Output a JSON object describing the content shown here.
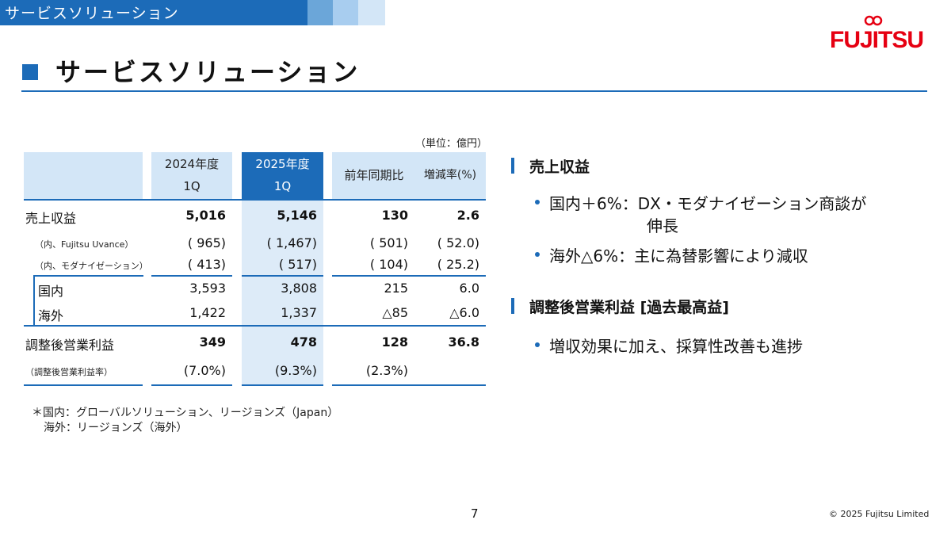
{
  "header": {
    "tab_label": "サービスソリューション"
  },
  "logo": {
    "text": "FUJITSU"
  },
  "page_title": "サービスソリューション",
  "table": {
    "unit": "（単位：億円）",
    "columns": {
      "fy2024_line1": "2024年度",
      "fy2024_line2": "1Q",
      "fy2025_line1": "2025年度",
      "fy2025_line2": "1Q",
      "yoy": "前年同期比",
      "growth": "増減率(%)"
    },
    "rows": [
      {
        "label": "売上収益",
        "v2024": "5,016",
        "v2025": "5,146",
        "yoy": "130",
        "rate": "2.6"
      },
      {
        "label": "（内、Fujitsu Uvance）",
        "v2024": "( 965)",
        "v2025": "( 1,467)",
        "yoy": "( 501)",
        "rate": "( 52.0)"
      },
      {
        "label": "（内、モダナイゼーション）",
        "v2024": "( 413)",
        "v2025": "( 517)",
        "yoy": "( 104)",
        "rate": "( 25.2)"
      },
      {
        "label": "国内",
        "v2024": "3,593",
        "v2025": "3,808",
        "yoy": "215",
        "rate": "6.0"
      },
      {
        "label": "海外",
        "v2024": "1,422",
        "v2025": "1,337",
        "yoy": "△85",
        "rate": "△6.0"
      },
      {
        "label": "調整後営業利益",
        "v2024": "349",
        "v2025": "478",
        "yoy": "128",
        "rate": "36.8"
      },
      {
        "label": "（調整後営業利益率）",
        "v2024": "(7.0%)",
        "v2025": "(9.3%)",
        "yoy": "(2.3%)",
        "rate": ""
      }
    ]
  },
  "sections": [
    {
      "heading": "売上収益",
      "bullets": [
        {
          "line1": "国内＋6%：DX・モダナイゼーション商談が",
          "line2": "伸長"
        },
        {
          "line1": "海外△6%：主に為替影響により減収"
        }
      ]
    },
    {
      "heading": "調整後営業利益 [過去最高益]",
      "bullets": [
        {
          "line1": "増収効果に加え、採算性改善も進捗"
        }
      ]
    }
  ],
  "notes": {
    "line1": "＊国内：グローバルソリューション、リージョンズ（Japan）",
    "line2": "海外：リージョンズ（海外）"
  },
  "footer": {
    "page_number": "7",
    "copyright": "© 2025 Fujitsu Limited"
  },
  "colors": {
    "accent": "#1c6bb8",
    "accent_light": "#d3e6f7",
    "logo_red": "#e60012"
  }
}
